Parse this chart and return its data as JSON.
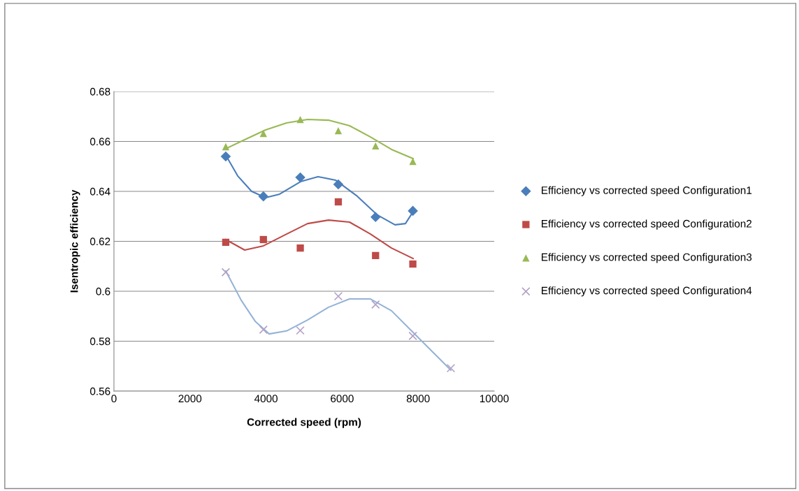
{
  "chart_data": {
    "type": "scatter",
    "xlabel": "Corrected speed (rpm)",
    "ylabel": "Isentropic efficiency",
    "xlim": [
      0,
      10000
    ],
    "xticks": [
      0,
      2000,
      4000,
      6000,
      8000,
      10000
    ],
    "ylim": [
      0.56,
      0.68
    ],
    "yticks": [
      {
        "value": 0.56,
        "label": "0.56"
      },
      {
        "value": 0.58,
        "label": "0.58"
      },
      {
        "value": 0.6,
        "label": "0.6"
      },
      {
        "value": 0.62,
        "label": "0.62"
      },
      {
        "value": 0.64,
        "label": "0.64"
      },
      {
        "value": 0.66,
        "label": "0.66"
      },
      {
        "value": 0.68,
        "label": "0.68"
      }
    ],
    "grid": "y",
    "legend": "right",
    "series": [
      {
        "name": "Efficiency vs corrected speed Configuration1",
        "marker": "diamond",
        "color": "#4a7ebb",
        "x": [
          2940,
          3930,
          4900,
          5900,
          6880,
          7860
        ],
        "values": [
          0.654,
          0.638,
          0.6456,
          0.6428,
          0.6297,
          0.6322
        ]
      },
      {
        "name": "Efficiency vs corrected speed Configuration2",
        "marker": "square",
        "color": "#be4b48",
        "x": [
          2940,
          3930,
          4900,
          5900,
          6880,
          7860
        ],
        "values": [
          0.6196,
          0.6207,
          0.6173,
          0.6358,
          0.6143,
          0.6109
        ]
      },
      {
        "name": "Efficiency vs corrected speed Configuration3",
        "marker": "triangle",
        "color": "#98b954",
        "x": [
          2940,
          3930,
          4900,
          5900,
          6880,
          7860
        ],
        "values": [
          0.6579,
          0.6632,
          0.6688,
          0.6643,
          0.6582,
          0.652
        ]
      },
      {
        "name": "Efficiency vs corrected speed Configuration4",
        "marker": "cross",
        "color": "#b3a2c7",
        "x": [
          2940,
          3930,
          4900,
          5900,
          6880,
          7860,
          8860
        ],
        "values": [
          0.6076,
          0.5846,
          0.5843,
          0.598,
          0.5947,
          0.5821,
          0.5692
        ]
      },
      {
        "type": "line",
        "color": "#4a7ebb",
        "x": [
          2941,
          3254,
          3621,
          3989,
          4357,
          4908,
          5368,
          5827,
          6379,
          6930,
          7390,
          7665,
          7868
        ],
        "values": [
          0.6545,
          0.6462,
          0.64,
          0.6375,
          0.6389,
          0.6439,
          0.6459,
          0.6445,
          0.6383,
          0.6305,
          0.6266,
          0.6271,
          0.6319
        ]
      },
      {
        "type": "line",
        "color": "#be4b48",
        "x": [
          2941,
          3438,
          3934,
          4540,
          5092,
          5643,
          6195,
          6746,
          7298,
          7868
        ],
        "values": [
          0.6207,
          0.6165,
          0.6182,
          0.6229,
          0.6271,
          0.6285,
          0.6277,
          0.6229,
          0.6173,
          0.6131
        ]
      },
      {
        "type": "line",
        "color": "#98b954",
        "x": [
          2941,
          3438,
          3989,
          4540,
          5092,
          5643,
          6195,
          6746,
          7298,
          7868
        ],
        "values": [
          0.6571,
          0.6607,
          0.6646,
          0.6674,
          0.6688,
          0.6685,
          0.6663,
          0.6618,
          0.6568,
          0.6531
        ]
      },
      {
        "type": "line",
        "color": "#95b3d7",
        "x": [
          2941,
          3346,
          3713,
          4081,
          4540,
          5092,
          5643,
          6195,
          6746,
          7298,
          7849,
          8401,
          8860
        ],
        "values": [
          0.6081,
          0.5964,
          0.588,
          0.5829,
          0.5841,
          0.5885,
          0.5936,
          0.5969,
          0.5969,
          0.5922,
          0.5838,
          0.5754,
          0.5684
        ]
      }
    ]
  }
}
